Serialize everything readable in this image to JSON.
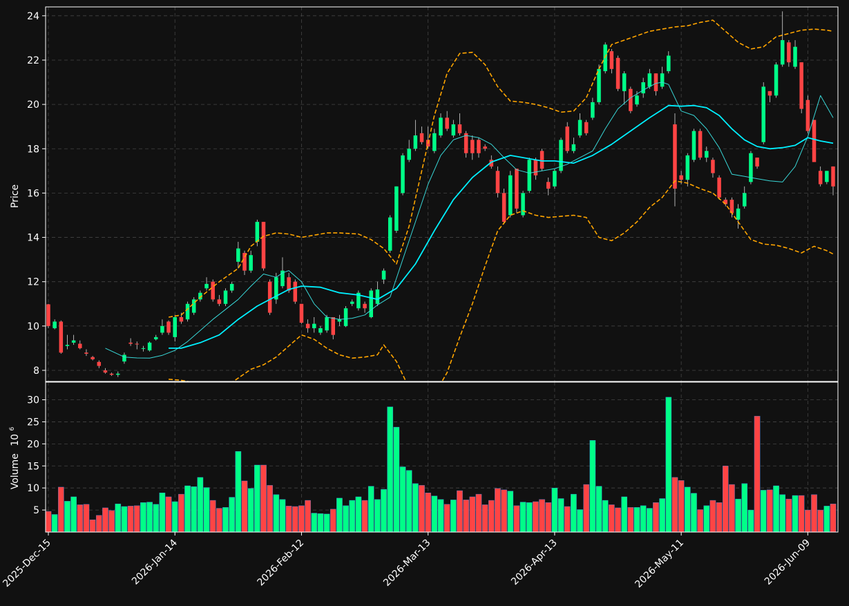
{
  "colors": {
    "background": "#111111",
    "up": "#00ff88",
    "down": "#ff4444",
    "wick": "#d9d9d9",
    "grid": "#444444",
    "axis": "#ffffff",
    "ma_fast": "#38d6d6",
    "ma_slow": "#00f0ff",
    "bands": "#ffa500",
    "text": "#ffffff"
  },
  "chart_data": {
    "type": "candlestick",
    "title": "",
    "price_axis": {
      "label": "Price",
      "ylim": [
        7.5,
        24.4
      ],
      "ticks": [
        8,
        10,
        12,
        14,
        16,
        18,
        20,
        22,
        24
      ]
    },
    "volume_axis": {
      "label": "Volume",
      "exponent_label": "10^6",
      "ylim": [
        0,
        34
      ],
      "ticks": [
        5,
        10,
        15,
        20,
        25,
        30
      ]
    },
    "x_axis": {
      "tick_labels": [
        {
          "label": "2025-Dec-15",
          "index": 0
        },
        {
          "label": "2026-Jan-14",
          "index": 20
        },
        {
          "label": "2026-Feb-12",
          "index": 40
        },
        {
          "label": "2026-Mar-13",
          "index": 60
        },
        {
          "label": "2026-Apr-13",
          "index": 80
        },
        {
          "label": "2026-May-11",
          "index": 100
        },
        {
          "label": "2026-Jun-09",
          "index": 120
        }
      ]
    },
    "grid": true,
    "ohlc": [
      [
        10.98,
        11.0,
        9.9,
        10.0
      ],
      [
        9.9,
        10.3,
        9.85,
        10.2
      ],
      [
        10.2,
        10.25,
        8.75,
        8.8
      ],
      [
        9.1,
        9.6,
        8.95,
        9.15
      ],
      [
        9.25,
        9.6,
        9.15,
        9.35
      ],
      [
        9.2,
        9.35,
        8.95,
        9.0
      ],
      [
        8.8,
        8.95,
        8.65,
        8.75
      ],
      [
        8.6,
        8.65,
        8.45,
        8.5
      ],
      [
        8.38,
        8.45,
        8.1,
        8.2
      ],
      [
        8.0,
        8.1,
        7.85,
        7.9
      ],
      [
        7.85,
        7.9,
        7.75,
        7.8
      ],
      [
        7.8,
        7.95,
        7.7,
        7.85
      ],
      [
        8.4,
        8.8,
        8.3,
        8.7
      ],
      [
        9.25,
        9.45,
        9.1,
        9.2
      ],
      [
        9.2,
        9.3,
        8.95,
        9.18
      ],
      [
        9.0,
        9.1,
        8.85,
        9.0
      ],
      [
        8.9,
        9.3,
        8.85,
        9.25
      ],
      [
        9.4,
        9.6,
        9.35,
        9.5
      ],
      [
        9.7,
        10.3,
        9.6,
        10.0
      ],
      [
        10.2,
        10.25,
        9.6,
        9.7
      ],
      [
        9.5,
        10.5,
        9.3,
        10.4
      ],
      [
        10.4,
        10.6,
        10.1,
        10.2
      ],
      [
        10.3,
        11.1,
        10.2,
        11.0
      ],
      [
        10.6,
        11.3,
        10.5,
        11.2
      ],
      [
        11.2,
        11.6,
        11.1,
        11.5
      ],
      [
        11.7,
        12.2,
        11.6,
        11.9
      ],
      [
        12.0,
        12.1,
        11.1,
        11.2
      ],
      [
        11.2,
        11.4,
        10.9,
        11.0
      ],
      [
        11.0,
        11.7,
        10.9,
        11.6
      ],
      [
        11.6,
        12.0,
        11.5,
        11.9
      ],
      [
        12.9,
        13.8,
        12.6,
        13.5
      ],
      [
        13.3,
        13.4,
        12.3,
        12.5
      ],
      [
        12.5,
        13.4,
        12.4,
        13.2
      ],
      [
        13.8,
        14.8,
        13.6,
        14.7
      ],
      [
        14.7,
        14.7,
        12.5,
        12.6
      ],
      [
        12.0,
        12.1,
        10.5,
        10.6
      ],
      [
        11.2,
        12.4,
        11.0,
        12.2
      ],
      [
        11.8,
        13.1,
        11.7,
        12.5
      ],
      [
        12.2,
        12.4,
        11.5,
        11.6
      ],
      [
        12.0,
        12.1,
        11.0,
        11.1
      ],
      [
        11.0,
        11.0,
        10.1,
        10.15
      ],
      [
        10.1,
        10.3,
        9.7,
        9.9
      ],
      [
        9.9,
        10.4,
        9.7,
        10.1
      ],
      [
        9.7,
        10.0,
        9.6,
        9.9
      ],
      [
        9.8,
        10.5,
        9.7,
        10.4
      ],
      [
        10.4,
        10.4,
        9.4,
        9.6
      ],
      [
        10.2,
        10.5,
        10.0,
        10.3
      ],
      [
        10.0,
        10.9,
        9.95,
        10.8
      ],
      [
        11.0,
        11.2,
        10.9,
        11.1
      ],
      [
        10.8,
        11.6,
        10.7,
        11.5
      ],
      [
        11.0,
        11.1,
        10.6,
        10.8
      ],
      [
        10.4,
        11.7,
        10.35,
        11.6
      ],
      [
        11.0,
        12.0,
        10.9,
        11.65
      ],
      [
        12.1,
        12.6,
        11.9,
        12.5
      ],
      [
        13.4,
        15.0,
        13.3,
        14.9
      ],
      [
        14.3,
        16.3,
        14.2,
        16.3
      ],
      [
        16.0,
        17.8,
        15.9,
        17.7
      ],
      [
        17.5,
        18.4,
        17.4,
        18.0
      ],
      [
        18.0,
        19.3,
        17.9,
        18.6
      ],
      [
        18.7,
        19.0,
        18.2,
        18.3
      ],
      [
        18.4,
        19.0,
        18.0,
        18.1
      ],
      [
        17.9,
        18.9,
        17.8,
        18.7
      ],
      [
        18.6,
        19.6,
        18.5,
        19.4
      ],
      [
        19.4,
        19.7,
        18.8,
        18.9
      ],
      [
        18.6,
        19.3,
        18.5,
        19.1
      ],
      [
        19.1,
        19.6,
        18.6,
        18.7
      ],
      [
        18.7,
        18.8,
        17.6,
        17.8
      ],
      [
        18.4,
        18.6,
        17.5,
        17.8
      ],
      [
        18.4,
        18.5,
        17.6,
        17.8
      ],
      [
        18.1,
        18.2,
        17.9,
        18.0
      ],
      [
        17.5,
        17.7,
        17.1,
        17.2
      ],
      [
        17.0,
        17.2,
        15.8,
        16.0
      ],
      [
        16.0,
        16.2,
        14.6,
        14.7
      ],
      [
        15.0,
        17.0,
        14.9,
        16.8
      ],
      [
        17.1,
        17.1,
        15.1,
        15.3
      ],
      [
        15.0,
        16.1,
        14.9,
        16.0
      ],
      [
        16.1,
        17.6,
        16.0,
        17.5
      ],
      [
        17.5,
        17.6,
        16.6,
        16.8
      ],
      [
        17.9,
        18.0,
        17.0,
        17.1
      ],
      [
        16.5,
        16.7,
        15.9,
        16.2
      ],
      [
        16.3,
        17.1,
        16.2,
        17.0
      ],
      [
        17.0,
        18.5,
        16.9,
        18.4
      ],
      [
        19.0,
        19.2,
        17.8,
        17.9
      ],
      [
        17.9,
        18.5,
        17.8,
        18.2
      ],
      [
        18.6,
        19.6,
        18.5,
        19.3
      ],
      [
        19.2,
        19.3,
        18.6,
        18.7
      ],
      [
        19.4,
        20.3,
        19.3,
        20.1
      ],
      [
        20.1,
        21.8,
        20.0,
        21.6
      ],
      [
        21.5,
        22.8,
        21.4,
        22.7
      ],
      [
        22.4,
        22.5,
        21.4,
        21.6
      ],
      [
        22.1,
        22.2,
        20.6,
        20.7
      ],
      [
        20.6,
        21.5,
        20.0,
        21.4
      ],
      [
        20.7,
        20.8,
        19.6,
        19.7
      ],
      [
        20.0,
        20.6,
        19.9,
        20.4
      ],
      [
        20.5,
        21.2,
        20.3,
        21.0
      ],
      [
        20.8,
        21.6,
        20.7,
        21.4
      ],
      [
        21.4,
        21.4,
        20.4,
        20.6
      ],
      [
        20.8,
        21.7,
        20.7,
        21.4
      ],
      [
        21.5,
        22.4,
        21.4,
        22.2
      ],
      [
        19.1,
        19.6,
        15.4,
        16.2
      ],
      [
        16.8,
        17.0,
        16.4,
        16.6
      ],
      [
        16.6,
        17.8,
        16.3,
        17.7
      ],
      [
        17.5,
        18.9,
        17.4,
        18.8
      ],
      [
        18.8,
        18.9,
        17.5,
        17.6
      ],
      [
        17.6,
        18.1,
        17.4,
        17.9
      ],
      [
        17.5,
        17.6,
        16.7,
        16.9
      ],
      [
        16.7,
        16.8,
        15.7,
        15.8
      ],
      [
        15.7,
        15.8,
        15.4,
        15.5
      ],
      [
        15.7,
        15.8,
        14.9,
        15.1
      ],
      [
        14.8,
        15.5,
        14.4,
        15.3
      ],
      [
        15.4,
        16.3,
        15.3,
        16.0
      ],
      [
        16.5,
        17.9,
        16.4,
        17.8
      ],
      [
        17.6,
        17.6,
        17.1,
        17.2
      ],
      [
        18.3,
        21.0,
        18.2,
        20.8
      ],
      [
        20.6,
        20.6,
        20.1,
        20.4
      ],
      [
        20.4,
        21.9,
        20.3,
        21.8
      ],
      [
        21.8,
        24.2,
        21.7,
        22.9
      ],
      [
        22.8,
        22.9,
        21.7,
        21.9
      ],
      [
        21.7,
        22.9,
        21.6,
        22.6
      ],
      [
        21.9,
        21.9,
        19.6,
        19.8
      ],
      [
        20.2,
        20.4,
        18.7,
        18.8
      ],
      [
        19.3,
        19.3,
        17.4,
        17.4
      ],
      [
        17.0,
        17.2,
        16.3,
        16.4
      ],
      [
        16.5,
        17.0,
        16.4,
        17.0
      ],
      [
        17.2,
        17.2,
        15.9,
        16.3
      ]
    ],
    "volume": [
      4.7,
      4.0,
      10.2,
      7.0,
      8.0,
      6.2,
      6.3,
      2.8,
      3.8,
      5.5,
      4.9,
      6.4,
      5.8,
      5.9,
      6.0,
      6.7,
      6.8,
      6.3,
      8.9,
      8.0,
      6.9,
      8.6,
      10.5,
      10.3,
      12.4,
      10.1,
      7.2,
      5.4,
      5.6,
      7.9,
      18.3,
      11.6,
      9.9,
      15.2,
      15.2,
      10.6,
      8.5,
      7.4,
      5.9,
      5.8,
      6.0,
      7.2,
      4.3,
      4.2,
      4.1,
      5.2,
      7.7,
      6.0,
      7.2,
      8.0,
      7.2,
      10.4,
      7.4,
      9.7,
      28.4,
      23.8,
      14.8,
      14.0,
      11.0,
      10.6,
      8.9,
      8.2,
      7.4,
      6.3,
      7.3,
      9.4,
      7.3,
      8.0,
      8.6,
      6.2,
      7.2,
      9.9,
      9.6,
      9.3,
      6.0,
      6.8,
      6.7,
      6.9,
      7.4,
      6.7,
      10.0,
      7.6,
      5.8,
      8.6,
      5.1,
      10.8,
      20.8,
      10.4,
      7.2,
      6.2,
      5.5,
      8.0,
      5.6,
      5.6,
      6.0,
      5.4,
      6.7,
      7.6,
      30.6,
      12.4,
      11.7,
      10.2,
      8.8,
      5.1,
      6.0,
      7.2,
      6.7,
      15.0,
      10.8,
      7.5,
      11.0,
      5.0,
      26.3,
      9.5,
      9.6,
      10.5,
      8.5,
      7.5,
      8.3,
      8.3,
      5.0,
      8.5,
      5.0,
      5.9,
      6.4
    ],
    "series": [
      {
        "name": "",
        "style": "thin line",
        "x": [
          9,
          12,
          14,
          16,
          18,
          20,
          22,
          24,
          26,
          28,
          30,
          32,
          34,
          36,
          37,
          38,
          40,
          42,
          44,
          46,
          48,
          50,
          52,
          54,
          56,
          58,
          60,
          62,
          64,
          66,
          68,
          70,
          72,
          74,
          76,
          78,
          80,
          82,
          84,
          86,
          88,
          90,
          92,
          94,
          96,
          97,
          98,
          100,
          102,
          104,
          106,
          108,
          110,
          112,
          114,
          116,
          118,
          120,
          122,
          124
        ],
        "y": [
          9.0,
          8.6,
          8.56,
          8.55,
          8.68,
          8.9,
          9.3,
          9.8,
          10.3,
          10.75,
          11.2,
          11.8,
          12.35,
          12.2,
          12.4,
          12.5,
          12.0,
          11.0,
          10.4,
          10.3,
          10.35,
          10.5,
          10.95,
          11.3,
          13.0,
          14.7,
          16.4,
          17.7,
          18.4,
          18.6,
          18.5,
          18.2,
          17.6,
          17.05,
          16.9,
          17.0,
          17.1,
          17.3,
          17.6,
          17.9,
          18.9,
          19.8,
          20.3,
          20.65,
          20.95,
          21.0,
          20.9,
          19.7,
          19.5,
          18.9,
          18.05,
          16.85,
          16.75,
          16.65,
          16.55,
          16.5,
          17.2,
          18.55,
          20.4,
          19.4
        ]
      },
      {
        "name": "",
        "style": "thick line",
        "x": [
          19,
          21,
          24,
          27,
          30,
          33,
          36,
          38,
          40,
          43,
          46,
          49,
          52,
          55,
          58,
          61,
          64,
          67,
          70,
          73,
          76,
          78,
          80,
          83,
          86,
          89,
          92,
          95,
          98,
          100,
          102,
          104,
          106,
          108,
          110,
          112,
          114,
          116,
          118,
          120,
          122,
          124
        ],
        "y": [
          9.0,
          9.0,
          9.25,
          9.6,
          10.3,
          10.9,
          11.35,
          11.65,
          11.8,
          11.75,
          11.5,
          11.4,
          11.2,
          11.7,
          12.8,
          14.3,
          15.7,
          16.7,
          17.4,
          17.7,
          17.55,
          17.45,
          17.45,
          17.35,
          17.7,
          18.2,
          18.8,
          19.4,
          19.95,
          19.92,
          19.95,
          19.85,
          19.5,
          18.9,
          18.4,
          18.1,
          18.0,
          18.05,
          18.15,
          18.5,
          18.35,
          18.25
        ]
      },
      {
        "name": "",
        "style": "upper band (dashed)",
        "x": [
          19,
          21,
          24,
          27,
          30,
          32,
          34,
          36,
          38,
          40,
          42,
          44,
          46,
          49,
          51,
          53,
          55,
          57,
          59,
          61,
          63,
          65,
          67,
          69,
          71,
          73,
          75,
          77,
          79,
          81,
          83,
          85,
          87,
          89,
          91,
          93,
          95,
          97,
          99,
          101,
          103,
          105,
          107,
          109,
          111,
          113,
          115,
          117,
          119,
          121,
          123,
          124
        ],
        "y": [
          10.4,
          10.5,
          11.3,
          12.0,
          12.6,
          13.6,
          14.05,
          14.2,
          14.15,
          14.0,
          14.1,
          14.2,
          14.2,
          14.15,
          13.9,
          13.5,
          12.8,
          14.5,
          17.0,
          19.5,
          21.4,
          22.3,
          22.35,
          21.8,
          20.8,
          20.15,
          20.1,
          20.0,
          19.85,
          19.65,
          19.7,
          20.3,
          21.6,
          22.7,
          22.9,
          23.1,
          23.3,
          23.4,
          23.5,
          23.55,
          23.7,
          23.8,
          23.3,
          22.8,
          22.5,
          22.6,
          23.05,
          23.2,
          23.35,
          23.4,
          23.35,
          23.3
        ]
      },
      {
        "name": "",
        "style": "lower band (dashed)",
        "x": [
          19,
          21,
          24,
          27,
          29,
          30,
          32,
          34,
          36,
          38,
          40,
          42,
          44,
          46,
          48,
          50,
          52,
          53,
          55,
          57,
          59,
          61,
          63,
          65,
          67,
          69,
          71,
          73,
          75,
          77,
          79,
          81,
          83,
          85,
          87,
          89,
          91,
          93,
          95,
          97,
          99,
          101,
          103,
          105,
          107,
          109,
          111,
          113,
          115,
          117,
          119,
          121,
          123,
          124
        ],
        "y": [
          7.6,
          7.55,
          7.4,
          7.3,
          7.45,
          7.65,
          8.05,
          8.25,
          8.6,
          9.1,
          9.6,
          9.4,
          9.0,
          8.7,
          8.55,
          8.6,
          8.7,
          9.15,
          8.4,
          7.2,
          6.6,
          6.9,
          7.9,
          9.5,
          11.0,
          12.7,
          14.3,
          15.0,
          15.2,
          15.0,
          14.9,
          14.95,
          15.0,
          14.9,
          14.0,
          13.85,
          14.2,
          14.7,
          15.35,
          15.8,
          16.55,
          16.45,
          16.2,
          16.0,
          15.5,
          14.7,
          13.9,
          13.7,
          13.65,
          13.5,
          13.3,
          13.6,
          13.4,
          13.25
        ]
      }
    ]
  }
}
